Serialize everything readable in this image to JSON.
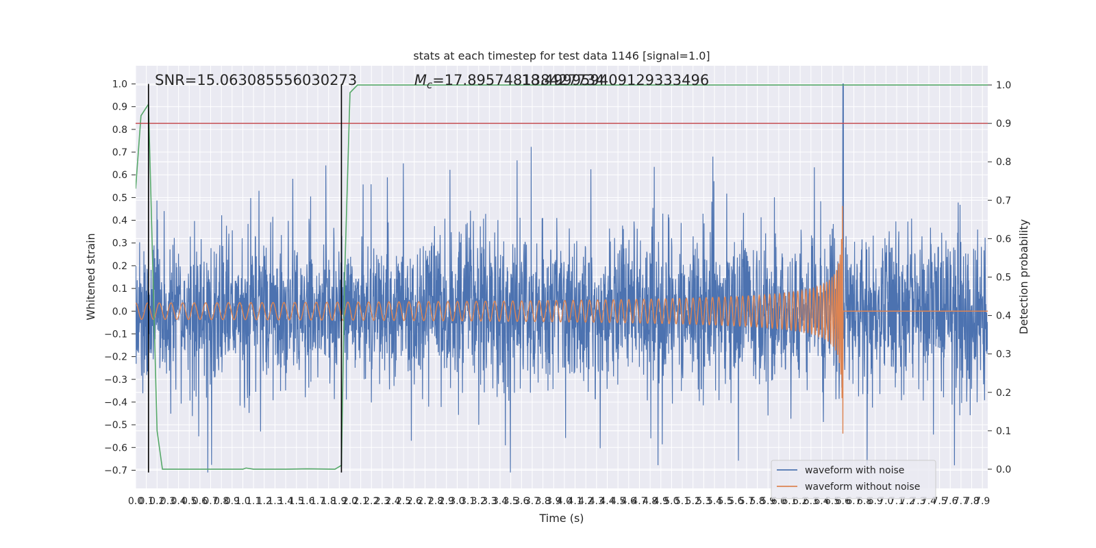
{
  "chart_data": {
    "type": "line",
    "title": "stats at each timestep for test data 1146 [signal=1.0]",
    "xlabel": "Time (s)",
    "ylabel": "Whitened strain",
    "y2label": "Detection probability",
    "xlim": [
      0.0,
      7.95
    ],
    "ylim": [
      -0.78,
      1.08
    ],
    "y2lim": [
      -0.05,
      1.05
    ],
    "xticks": [
      0.0,
      0.1,
      0.2,
      0.3,
      0.4,
      0.5,
      0.6,
      0.7,
      0.8,
      0.9,
      1.0,
      1.1,
      1.2,
      1.3,
      1.4,
      1.5,
      1.6,
      1.7,
      1.8,
      1.9,
      2.0,
      2.1,
      2.2,
      2.3,
      2.4,
      2.5,
      2.6,
      2.7,
      2.8,
      2.9,
      3.0,
      3.1,
      3.2,
      3.3,
      3.4,
      3.5,
      3.6,
      3.7,
      3.8,
      3.9,
      4.0,
      4.1,
      4.2,
      4.3,
      4.4,
      4.5,
      4.6,
      4.7,
      4.8,
      4.9,
      5.0,
      5.1,
      5.2,
      5.3,
      5.4,
      5.5,
      5.6,
      5.7,
      5.8,
      5.9,
      6.0,
      6.1,
      6.2,
      6.3,
      6.4,
      6.5,
      6.6,
      6.7,
      6.8,
      6.9,
      7.0,
      7.1,
      7.2,
      7.3,
      7.4,
      7.5,
      7.6,
      7.7,
      7.8,
      7.9
    ],
    "xtick_labels": [
      "0.0",
      "0.1",
      "0.2",
      "0.3",
      "0.4",
      "0.5",
      "0.6",
      "0.7",
      "0.8",
      "0.9",
      "1.0",
      "1.1",
      "1.2",
      "1.3",
      "1.4",
      "1.5",
      "1.6",
      "1.7",
      "1.8",
      "1.9",
      "2.0",
      "2.1",
      "2.2",
      "2.3",
      "2.4",
      "2.5",
      "2.6",
      "2.7",
      "2.8",
      "2.9",
      "3.0",
      "3.1",
      "3.2",
      "3.3",
      "3.4",
      "3.5",
      "3.6",
      "3.7",
      "3.8",
      "3.9",
      "4.0",
      "4.1",
      "4.2",
      "4.3",
      "4.4",
      "4.5",
      "4.6",
      "4.7",
      "4.8",
      "4.9",
      "5.0",
      "5.1",
      "5.2",
      "5.3",
      "5.4",
      "5.5",
      "5.6",
      "5.7",
      "5.8",
      "5.9",
      "6.0",
      "6.1",
      "6.2",
      "6.3",
      "6.4",
      "6.5",
      "6.6",
      "6.7",
      "6.8",
      "6.9",
      "7.0",
      "7.1",
      "7.2",
      "7.3",
      "7.4",
      "7.5",
      "7.6",
      "7.7",
      "7.8",
      "7.9"
    ],
    "yticks": [
      -0.7,
      -0.6,
      -0.5,
      -0.4,
      -0.3,
      -0.2,
      -0.1,
      0.0,
      0.1,
      0.2,
      0.3,
      0.4,
      0.5,
      0.6,
      0.7,
      0.8,
      0.9,
      1.0
    ],
    "ytick_labels": [
      "−0.7",
      "−0.6",
      "−0.5",
      "−0.4",
      "−0.3",
      "−0.2",
      "−0.1",
      "0.0",
      "0.1",
      "0.2",
      "0.3",
      "0.4",
      "0.5",
      "0.6",
      "0.7",
      "0.8",
      "0.9",
      "1.0"
    ],
    "y2ticks": [
      0.0,
      0.1,
      0.2,
      0.3,
      0.4,
      0.5,
      0.6,
      0.7,
      0.8,
      0.9,
      1.0
    ],
    "y2tick_labels": [
      "0.0",
      "0.1",
      "0.2",
      "0.3",
      "0.4",
      "0.5",
      "0.6",
      "0.7",
      "0.8",
      "0.9",
      "1.0"
    ],
    "grid": true,
    "legend_placement": "lower-right",
    "series": [
      {
        "name": "waveform with noise",
        "axis": "left",
        "color": "#4c72b0",
        "description_stats": {
          "band_low": -0.36,
          "band_high": 0.34,
          "peak_max": 1.0,
          "peak_min": -0.71
        }
      },
      {
        "name": "waveform without noise",
        "axis": "left",
        "color": "#dd8452",
        "chirp_end_time": 6.6,
        "final_amplitude": 0.55
      }
    ],
    "detection_probability": {
      "axis": "right",
      "color": "#55a868",
      "x": [
        0.0,
        0.05,
        0.12,
        0.2,
        0.25,
        1.0,
        1.03,
        1.1,
        1.4,
        1.6,
        1.86,
        1.92,
        1.95,
        2.0,
        2.07,
        7.95
      ],
      "y": [
        0.73,
        0.92,
        0.95,
        0.1,
        0.0,
        0.0,
        0.003,
        0.0,
        0.0,
        0.001,
        0.0,
        0.01,
        0.5,
        0.98,
        1.0,
        1.0
      ]
    },
    "threshold_line": {
      "axis": "right",
      "y": 0.9,
      "color": "#c44e52"
    },
    "vertical_markers": [
      {
        "x": 0.12,
        "color": "#000000"
      },
      {
        "x": 1.92,
        "color": "#000000"
      }
    ],
    "annotations": [
      {
        "text": "SNR=15.063085556030273",
        "x": 0.18,
        "y": 1.02
      },
      {
        "text": "M_c=17.895748138427734",
        "x": 2.6,
        "y": 1.02
      },
      {
        "text": "18.499959409129333496",
        "x": 3.6,
        "y": 1.02
      }
    ]
  }
}
